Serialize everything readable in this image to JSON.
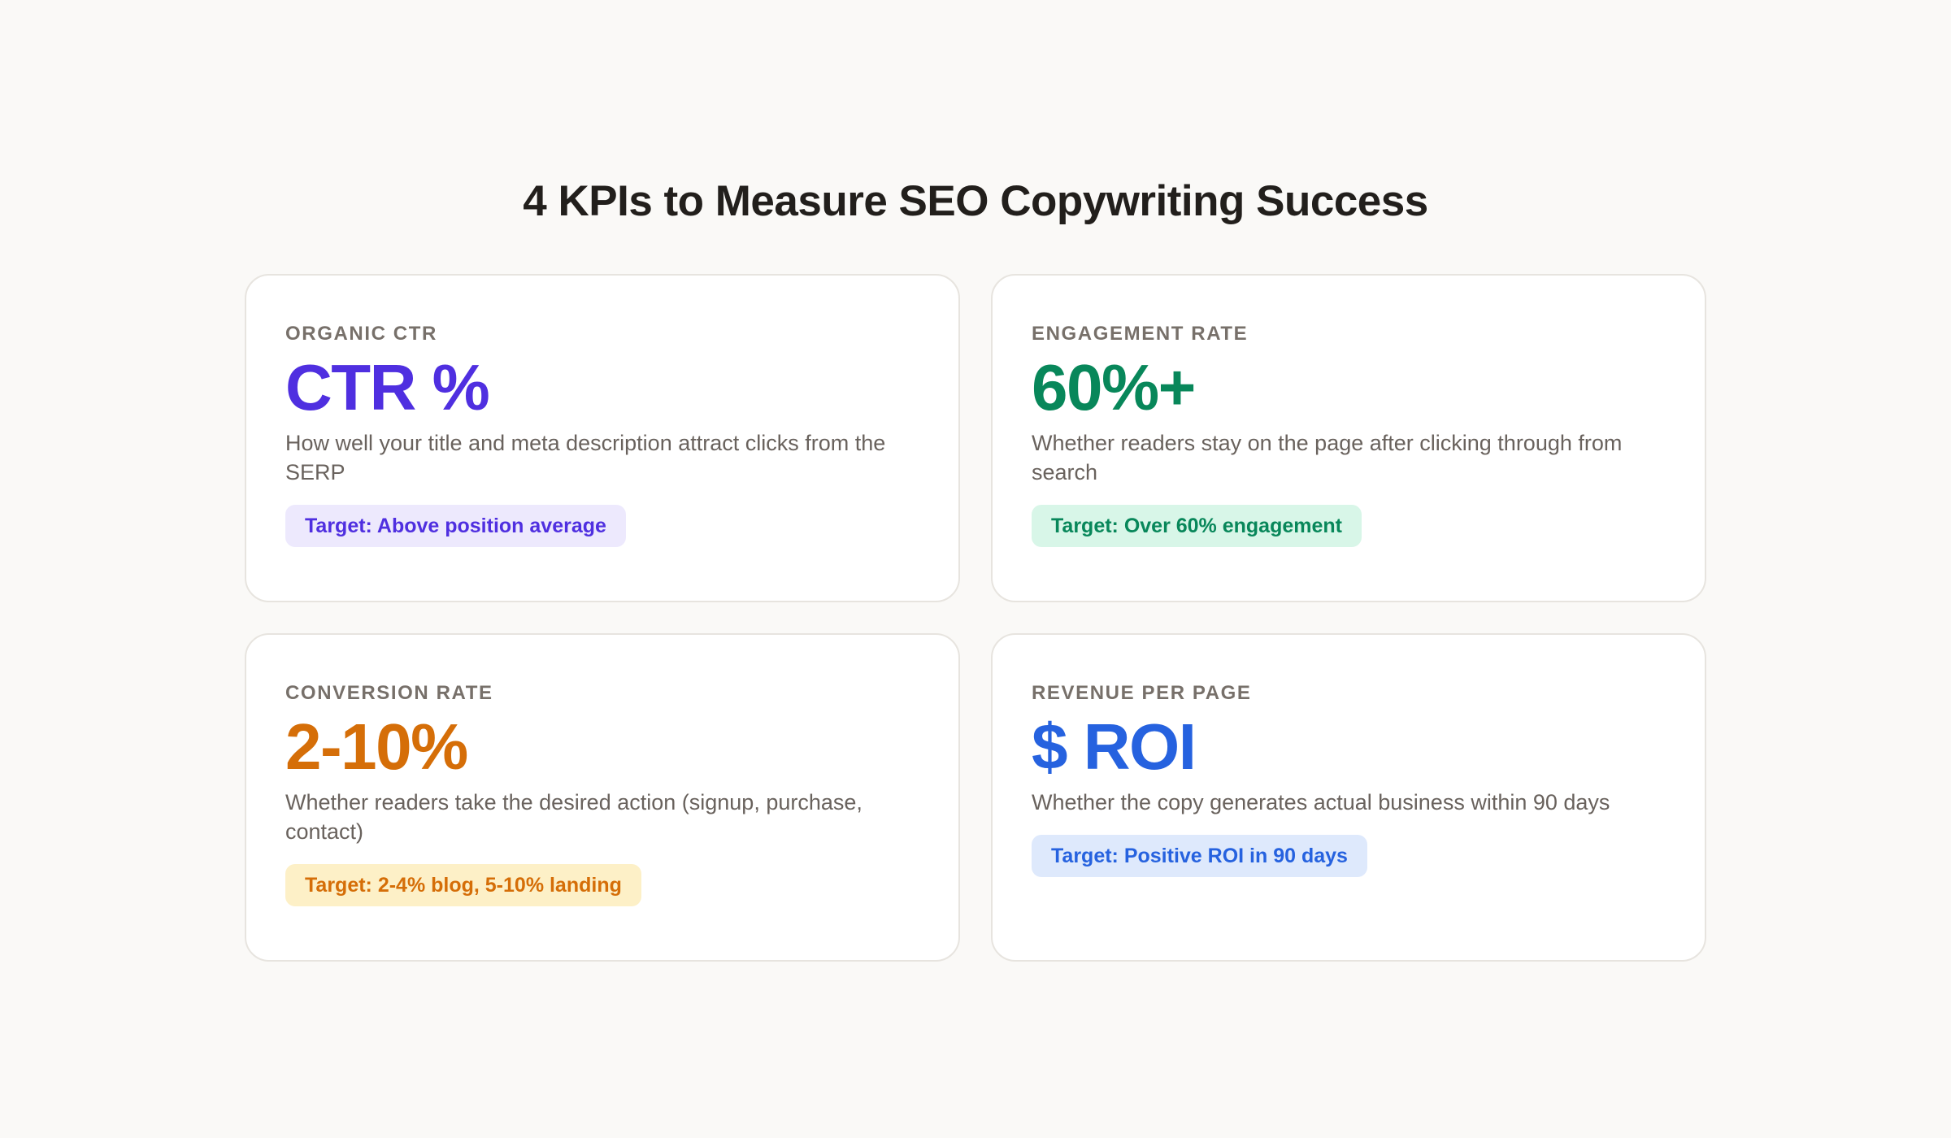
{
  "title": "4 KPIs to Measure SEO Copywriting Success",
  "kpis": [
    {
      "label": "ORGANIC CTR",
      "value": "CTR %",
      "description": "How well your title and meta description attract clicks from the SERP",
      "target": "Target: Above position average",
      "accent_color": "#4f2fe0",
      "badge_background": "#ede9fd"
    },
    {
      "label": "ENGAGEMENT RATE",
      "value": "60%+",
      "description": "Whether readers stay on the page after clicking through from search",
      "target": "Target: Over 60% engagement",
      "accent_color": "#08875a",
      "badge_background": "#d8f6e8"
    },
    {
      "label": "CONVERSION RATE",
      "value": "2-10%",
      "description": "Whether readers take the desired action (signup, purchase, contact)",
      "target": "Target: 2-4% blog, 5-10% landing",
      "accent_color": "#d56e08",
      "badge_background": "#fdf0c7"
    },
    {
      "label": "REVENUE PER PAGE",
      "value": "$ ROI",
      "description": "Whether the copy generates actual business within 90 days",
      "target": "Target: Positive ROI in 90 days",
      "accent_color": "#2662df",
      "badge_background": "#dee9fc"
    }
  ]
}
